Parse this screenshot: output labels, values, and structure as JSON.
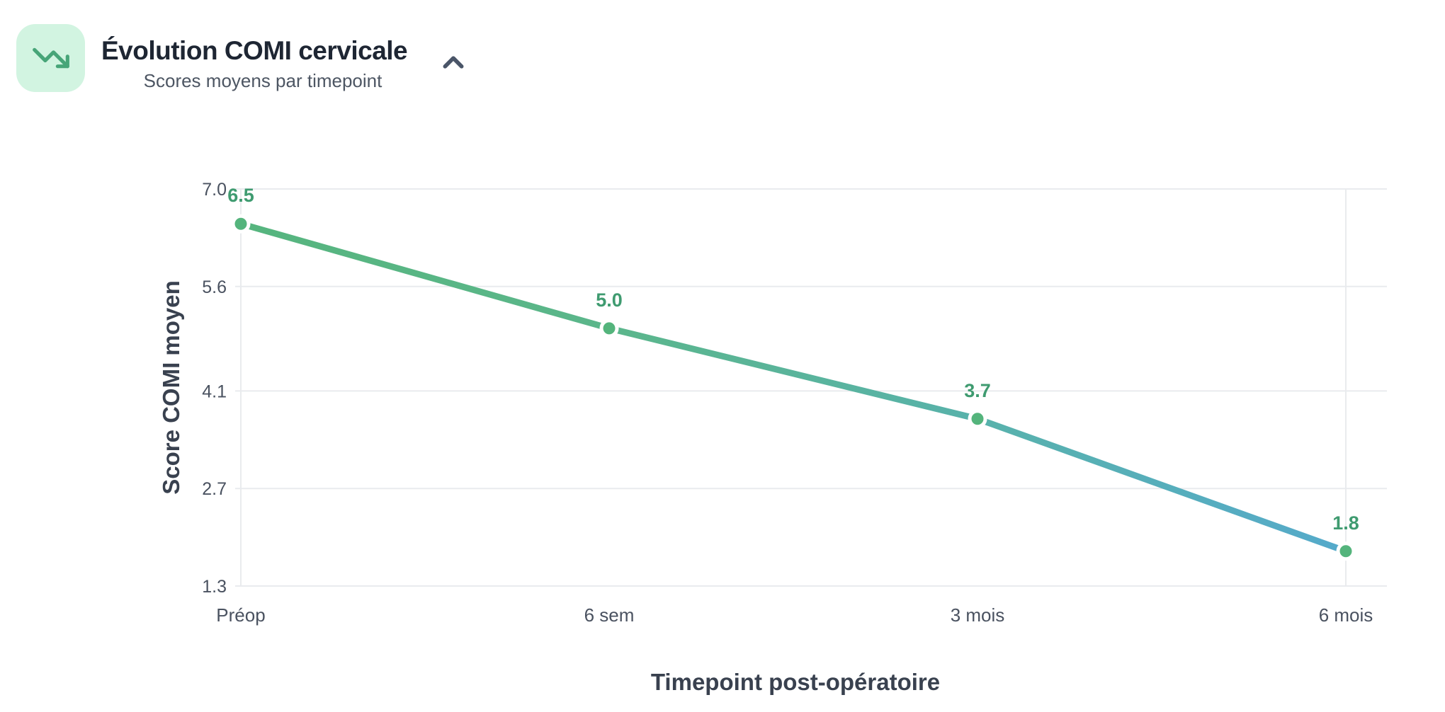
{
  "header": {
    "title": "Évolution COMI cervicale",
    "subtitle": "Scores moyens par timepoint",
    "icon": "trending-down-icon",
    "collapse_icon": "chevron-up-icon"
  },
  "colors": {
    "icon_bg": "#d2f4e1",
    "icon_arrow": "#47a578",
    "title_text": "#1e2633",
    "subtitle_text": "#4d5663",
    "chevron": "#4a5568",
    "grid": "#e9ebee",
    "tick_text": "#4a5260",
    "axis_title_text": "#39414f",
    "point_green": "#54b47c",
    "label_green": "#3f9b70",
    "line_green": "#56b57e",
    "line_blue": "#55aacb"
  },
  "chart_data": {
    "type": "line",
    "title": "Évolution COMI cervicale",
    "subtitle": "Scores moyens par timepoint",
    "categories": [
      "Préop",
      "6 sem",
      "3 mois",
      "6 mois"
    ],
    "series": [
      {
        "name": "Score COMI moyen",
        "values": [
          6.5,
          5.0,
          3.7,
          1.8
        ]
      }
    ],
    "value_labels": [
      "6.5",
      "5.0",
      "3.7",
      "1.8"
    ],
    "xlabel": "Timepoint post-opératoire",
    "ylabel": "Score COMI moyen",
    "y_ticks": [
      7.0,
      5.6,
      4.1,
      2.7,
      1.3
    ],
    "y_tick_labels": [
      "7.0",
      "5.6",
      "4.1",
      "2.7",
      "1.3"
    ],
    "ylim": [
      1.3,
      7.0
    ],
    "grid": "horizontal-all-ticks, vertical-first-and-last-category",
    "legend": "none",
    "line_gradient": [
      "#56b57e",
      "#5bb68b",
      "#58b2ab",
      "#55aacb"
    ],
    "point_color": "#54b47c",
    "label_color": "#3f9b70"
  }
}
